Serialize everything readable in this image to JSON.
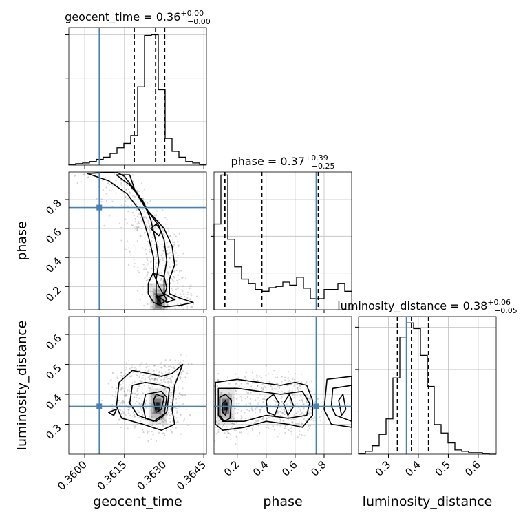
{
  "chart_data": {
    "type": "corner",
    "parameters": [
      "geocent_time",
      "phase",
      "luminosity_distance"
    ],
    "truths": {
      "geocent_time": 0.36055,
      "phase": 0.745,
      "luminosity_distance": 0.36
    },
    "colors": {
      "truth": "#4682b4",
      "hist": "#000000",
      "grid": "#c0c0c0",
      "samples": "#808080"
    },
    "grid": true,
    "panels": {
      "geocent_time": {
        "title_main": "geocent_time = 0.36",
        "title_sup": "+0.00",
        "title_sub": "−0.00",
        "xlim": [
          0.3594,
          0.3646
        ],
        "xticks": [
          0.36,
          0.3615,
          0.363,
          0.3645
        ],
        "xtick_labels": [
          "0.3600",
          "0.3615",
          "0.3630",
          "0.3645"
        ],
        "quantiles": [
          0.36187,
          0.36268,
          0.36302
        ],
        "hist_edges": [
          0.3594,
          0.35966,
          0.35992,
          0.36018,
          0.36044,
          0.3607,
          0.36096,
          0.36122,
          0.36148,
          0.36174,
          0.362,
          0.36226,
          0.36252,
          0.36278,
          0.36304,
          0.3633,
          0.36356,
          0.36382,
          0.36408,
          0.36434,
          0.3646
        ],
        "hist_counts": [
          1,
          2,
          3,
          5,
          8,
          11,
          16,
          24,
          30,
          41,
          108,
          179,
          180,
          104,
          37,
          19,
          11,
          5,
          3,
          1
        ],
        "ymax": 190
      },
      "phase": {
        "title_main": "phase = 0.37",
        "title_sup": "+0.39",
        "title_sub": "−0.25",
        "xlim": [
          0.04,
          0.99
        ],
        "xticks": [
          0.2,
          0.4,
          0.6,
          0.8
        ],
        "xtick_labels": [
          "0.2",
          "0.4",
          "0.6",
          "0.8"
        ],
        "quantiles": [
          0.115,
          0.37,
          0.76
        ],
        "hist_edges": [
          0.04,
          0.0875,
          0.135,
          0.1825,
          0.23,
          0.2775,
          0.325,
          0.3725,
          0.42,
          0.4675,
          0.515,
          0.5625,
          0.61,
          0.6575,
          0.705,
          0.7525,
          0.8,
          0.8475,
          0.895,
          0.9425,
          0.99
        ],
        "hist_counts": [
          140,
          220,
          115,
          70,
          50,
          43,
          33,
          30,
          36,
          38,
          45,
          40,
          53,
          35,
          18,
          18,
          33,
          33,
          43,
          30
        ],
        "ymax": 225
      },
      "luminosity_distance": {
        "title_main": "luminosity_distance = 0.38",
        "title_sup": "+0.06",
        "title_sub": "−0.05",
        "xlim": [
          0.2,
          0.66
        ],
        "xticks": [
          0.3,
          0.4,
          0.5,
          0.6
        ],
        "xtick_labels": [
          "0.3",
          "0.4",
          "0.5",
          "0.6"
        ],
        "quantiles": [
          0.33,
          0.377,
          0.434
        ],
        "hist_edges": [
          0.2,
          0.223,
          0.246,
          0.269,
          0.292,
          0.315,
          0.338,
          0.361,
          0.384,
          0.407,
          0.43,
          0.453,
          0.476,
          0.499,
          0.522,
          0.545,
          0.568,
          0.591,
          0.614,
          0.637,
          0.66
        ],
        "hist_counts": [
          1,
          4,
          12,
          28,
          50,
          108,
          166,
          186,
          178,
          140,
          96,
          42,
          30,
          16,
          6,
          4,
          2,
          2,
          1,
          0
        ],
        "ymax": 195
      }
    },
    "pair_ylims": {
      "phase": [
        0.04,
        0.99
      ],
      "luminosity_distance": [
        0.2,
        0.66
      ]
    },
    "pair_yticks": {
      "phase": {
        "values": [
          0.2,
          0.4,
          0.6,
          0.8
        ],
        "labels": [
          "0.2",
          "0.4",
          "0.6",
          "0.8"
        ]
      },
      "luminosity_distance": {
        "values": [
          0.3,
          0.4,
          0.5,
          0.6
        ],
        "labels": [
          "0.3",
          "0.4",
          "0.5",
          "0.6"
        ]
      }
    },
    "pairs": [
      {
        "id": "phase-vs-geocent_time",
        "x": "geocent_time",
        "y": "phase",
        "density_peak": [
          0.3628,
          0.1
        ],
        "contours": [
          [
            [
              0.3601,
              0.98
            ],
            [
              0.3609,
              0.93
            ],
            [
              0.3616,
              0.84
            ],
            [
              0.3621,
              0.72
            ],
            [
              0.3624,
              0.55
            ],
            [
              0.3626,
              0.4
            ],
            [
              0.3626,
              0.3
            ],
            [
              0.3624,
              0.22
            ],
            [
              0.3624,
              0.15
            ],
            [
              0.3626,
              0.09
            ],
            [
              0.363,
              0.06
            ],
            [
              0.3636,
              0.07
            ],
            [
              0.3641,
              0.09
            ],
            [
              0.3636,
              0.12
            ],
            [
              0.3632,
              0.15
            ],
            [
              0.3632,
              0.25
            ],
            [
              0.3634,
              0.35
            ],
            [
              0.3633,
              0.48
            ],
            [
              0.363,
              0.6
            ],
            [
              0.3624,
              0.72
            ],
            [
              0.362,
              0.84
            ],
            [
              0.3615,
              0.96
            ],
            [
              0.3612,
              0.99
            ]
          ],
          [
            [
              0.3612,
              0.97
            ],
            [
              0.3617,
              0.9
            ],
            [
              0.3622,
              0.79
            ],
            [
              0.3625,
              0.66
            ],
            [
              0.3627,
              0.5
            ],
            [
              0.3628,
              0.37
            ],
            [
              0.3627,
              0.25
            ],
            [
              0.3627,
              0.14
            ],
            [
              0.3631,
              0.09
            ],
            [
              0.3634,
              0.11
            ],
            [
              0.363,
              0.15
            ],
            [
              0.363,
              0.27
            ],
            [
              0.3631,
              0.38
            ],
            [
              0.363,
              0.52
            ],
            [
              0.3628,
              0.62
            ],
            [
              0.3623,
              0.74
            ],
            [
              0.3619,
              0.86
            ],
            [
              0.3617,
              0.97
            ]
          ],
          [
            [
              0.3625,
              0.6
            ],
            [
              0.3628,
              0.55
            ],
            [
              0.3629,
              0.58
            ],
            [
              0.3627,
              0.63
            ]
          ],
          [
            [
              0.3626,
              0.29
            ],
            [
              0.3628,
              0.2
            ],
            [
              0.363,
              0.14
            ],
            [
              0.3631,
              0.19
            ],
            [
              0.363,
              0.27
            ]
          ],
          [
            [
              0.3627,
              0.13
            ],
            [
              0.3629,
              0.08
            ],
            [
              0.3631,
              0.11
            ],
            [
              0.363,
              0.14
            ]
          ]
        ]
      },
      {
        "id": "luminosity_distance-vs-geocent_time",
        "x": "geocent_time",
        "y": "luminosity_distance",
        "density_peak": [
          0.36275,
          0.36
        ],
        "contours": [
          [
            [
              0.3612,
              0.36
            ],
            [
              0.3613,
              0.44
            ],
            [
              0.3618,
              0.48
            ],
            [
              0.3624,
              0.47
            ],
            [
              0.3629,
              0.46
            ],
            [
              0.3633,
              0.47
            ],
            [
              0.3637,
              0.5
            ],
            [
              0.3634,
              0.43
            ],
            [
              0.3633,
              0.35
            ],
            [
              0.3634,
              0.3
            ],
            [
              0.3629,
              0.28
            ],
            [
              0.3622,
              0.3
            ],
            [
              0.3614,
              0.32
            ]
          ],
          [
            [
              0.3617,
              0.37
            ],
            [
              0.3618,
              0.43
            ],
            [
              0.3623,
              0.44
            ],
            [
              0.3629,
              0.43
            ],
            [
              0.3632,
              0.42
            ],
            [
              0.3631,
              0.34
            ],
            [
              0.3626,
              0.31
            ],
            [
              0.362,
              0.33
            ]
          ],
          [
            [
              0.3622,
              0.36
            ],
            [
              0.3623,
              0.4
            ],
            [
              0.3629,
              0.41
            ],
            [
              0.3631,
              0.39
            ],
            [
              0.363,
              0.33
            ],
            [
              0.3627,
              0.31
            ],
            [
              0.3623,
              0.32
            ]
          ],
          [
            [
              0.3626,
              0.38
            ],
            [
              0.3627,
              0.4
            ],
            [
              0.363,
              0.39
            ],
            [
              0.3629,
              0.35
            ],
            [
              0.3627,
              0.34
            ]
          ],
          [
            [
              0.3609,
              0.34
            ],
            [
              0.3611,
              0.33
            ],
            [
              0.3612,
              0.35
            ]
          ]
        ]
      },
      {
        "id": "luminosity_distance-vs-phase",
        "x": "phase",
        "y": "luminosity_distance",
        "density_peak": [
          0.12,
          0.36
        ],
        "contours": [
          [
            [
              0.05,
              0.44
            ],
            [
              0.2,
              0.45
            ],
            [
              0.35,
              0.44
            ],
            [
              0.5,
              0.43
            ],
            [
              0.6,
              0.44
            ],
            [
              0.68,
              0.43
            ],
            [
              0.72,
              0.38
            ],
            [
              0.72,
              0.33
            ],
            [
              0.65,
              0.29
            ],
            [
              0.55,
              0.3
            ],
            [
              0.4,
              0.31
            ],
            [
              0.25,
              0.29
            ],
            [
              0.1,
              0.28
            ],
            [
              0.05,
              0.3
            ]
          ],
          [
            [
              0.07,
              0.42
            ],
            [
              0.2,
              0.42
            ],
            [
              0.35,
              0.41
            ],
            [
              0.5,
              0.4
            ],
            [
              0.65,
              0.41
            ],
            [
              0.7,
              0.37
            ],
            [
              0.68,
              0.33
            ],
            [
              0.55,
              0.32
            ],
            [
              0.4,
              0.33
            ],
            [
              0.25,
              0.31
            ],
            [
              0.1,
              0.31
            ],
            [
              0.07,
              0.33
            ]
          ],
          [
            [
              0.08,
              0.39
            ],
            [
              0.12,
              0.4
            ],
            [
              0.16,
              0.38
            ],
            [
              0.15,
              0.32
            ],
            [
              0.11,
              0.31
            ],
            [
              0.08,
              0.33
            ]
          ],
          [
            [
              0.1,
              0.37
            ],
            [
              0.12,
              0.38
            ],
            [
              0.13,
              0.36
            ],
            [
              0.12,
              0.33
            ],
            [
              0.1,
              0.34
            ]
          ],
          [
            [
              0.4,
              0.38
            ],
            [
              0.45,
              0.4
            ],
            [
              0.49,
              0.37
            ],
            [
              0.46,
              0.33
            ],
            [
              0.41,
              0.34
            ]
          ],
          [
            [
              0.52,
              0.37
            ],
            [
              0.56,
              0.4
            ],
            [
              0.59,
              0.36
            ],
            [
              0.55,
              0.33
            ]
          ],
          [
            [
              0.82,
              0.45
            ],
            [
              0.99,
              0.46
            ],
            [
              0.99,
              0.29
            ],
            [
              0.85,
              0.3
            ],
            [
              0.8,
              0.35
            ]
          ],
          [
            [
              0.86,
              0.42
            ],
            [
              0.99,
              0.43
            ],
            [
              0.99,
              0.31
            ],
            [
              0.88,
              0.33
            ],
            [
              0.85,
              0.36
            ]
          ],
          [
            [
              0.9,
              0.38
            ],
            [
              0.93,
              0.4
            ],
            [
              0.95,
              0.35
            ],
            [
              0.92,
              0.33
            ]
          ]
        ]
      }
    ]
  }
}
